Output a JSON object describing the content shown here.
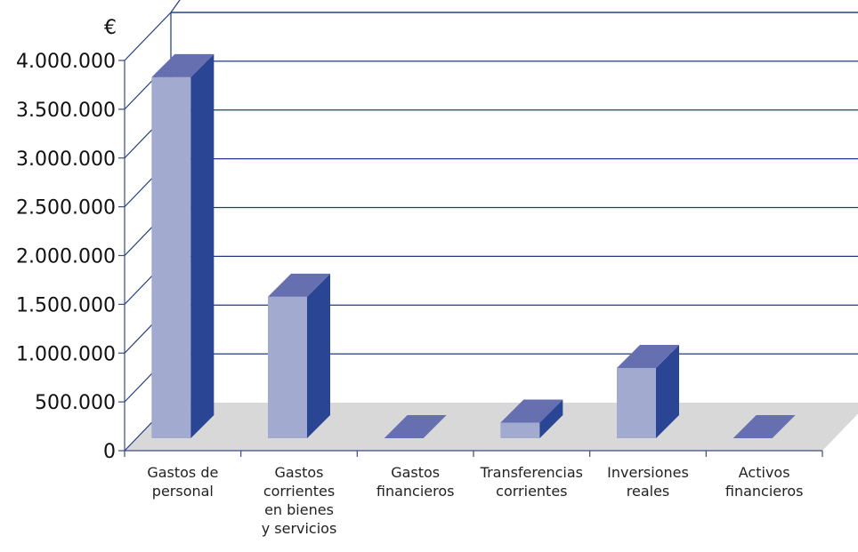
{
  "chart_data": {
    "type": "bar",
    "unit_label": "€",
    "ylim": [
      0,
      4000000
    ],
    "y_ticks": [
      0,
      500000,
      1000000,
      1500000,
      2000000,
      2500000,
      3000000,
      3500000,
      4000000
    ],
    "y_tick_labels": [
      "0",
      "500.000",
      "1.000.000",
      "1.500.000",
      "2.000.000",
      "2.500.000",
      "3.000.000",
      "3.500.000",
      "4.000.000"
    ],
    "categories": [
      [
        "Gastos de",
        "personal"
      ],
      [
        "Gastos",
        "corrientes",
        "en bienes",
        "y servicios"
      ],
      [
        "Gastos",
        "financieros"
      ],
      [
        "Transferencias",
        "corrientes"
      ],
      [
        "Inversiones",
        "reales"
      ],
      [
        "Activos",
        "financieros"
      ]
    ],
    "values": [
      3700000,
      1450000,
      0,
      160000,
      720000,
      0
    ],
    "grid": true,
    "three_d": true,
    "colors": {
      "bar_front": "#a3aacf",
      "bar_side": "#2a4593",
      "bar_top": "#6670b0",
      "floor": "#d8d8d8",
      "grid": "#1f3a80",
      "axis": "#3a4a80"
    }
  }
}
